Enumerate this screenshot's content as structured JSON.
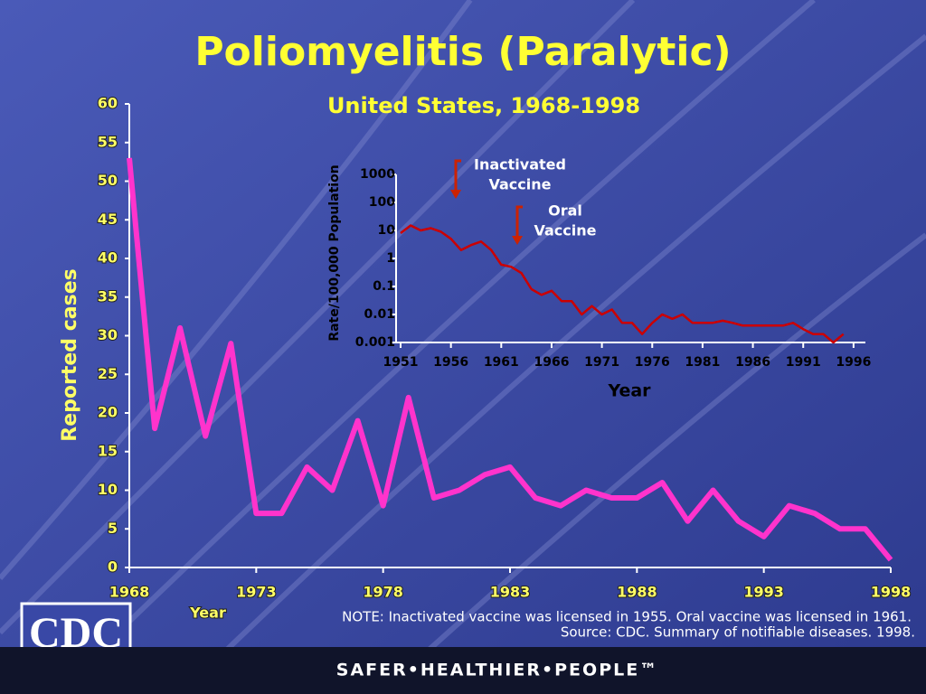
{
  "chart_data": [
    {
      "type": "line",
      "title": "Poliomyelitis (Paralytic)",
      "subtitle": "United States, 1968-1998",
      "y_label": "Reported cases",
      "x_label": "Year",
      "x": [
        1968,
        1969,
        1970,
        1971,
        1972,
        1973,
        1974,
        1975,
        1976,
        1977,
        1978,
        1979,
        1980,
        1981,
        1982,
        1983,
        1984,
        1985,
        1986,
        1987,
        1988,
        1989,
        1990,
        1991,
        1992,
        1993,
        1994,
        1995,
        1996,
        1997,
        1998
      ],
      "series": [
        {
          "name": "Reported cases",
          "color": "#ff33cc",
          "values": [
            53,
            18,
            31,
            17,
            29,
            7,
            7,
            13,
            10,
            19,
            8,
            22,
            9,
            10,
            12,
            13,
            9,
            8,
            10,
            9,
            9,
            11,
            6,
            10,
            6,
            4,
            8,
            7,
            5,
            5,
            1
          ]
        }
      ],
      "xlim": [
        1968,
        1998
      ],
      "xticks": [
        1968,
        1973,
        1978,
        1983,
        1988,
        1993,
        1998
      ],
      "ylim": [
        0,
        60
      ],
      "yticks": [
        0,
        5,
        10,
        15,
        20,
        25,
        30,
        35,
        40,
        45,
        50,
        55,
        60
      ]
    },
    {
      "type": "line",
      "y_label": "Rate/100,000 Population",
      "x_label": "Year",
      "yscale": "log",
      "x": [
        1951,
        1952,
        1953,
        1954,
        1955,
        1956,
        1957,
        1958,
        1959,
        1960,
        1961,
        1962,
        1963,
        1964,
        1965,
        1966,
        1967,
        1968,
        1969,
        1970,
        1971,
        1972,
        1973,
        1974,
        1975,
        1976,
        1977,
        1978,
        1979,
        1980,
        1981,
        1982,
        1983,
        1984,
        1985,
        1986,
        1987,
        1988,
        1989,
        1990,
        1991,
        1992,
        1993,
        1994,
        1995
      ],
      "series": [
        {
          "name": "Rate",
          "color": "#cc0000",
          "values": [
            8,
            15,
            10,
            12,
            9,
            5,
            2,
            3,
            4,
            2,
            0.6,
            0.5,
            0.3,
            0.08,
            0.05,
            0.07,
            0.03,
            0.03,
            0.01,
            0.02,
            0.01,
            0.015,
            0.005,
            0.005,
            0.002,
            0.005,
            0.01,
            0.007,
            0.01,
            0.005,
            0.005,
            0.005,
            0.006,
            0.005,
            0.004,
            0.004,
            0.004,
            0.004,
            0.004,
            0.005,
            0.003,
            0.002,
            0.002,
            0.001,
            0.002
          ]
        }
      ],
      "annotations": [
        {
          "lines": [
            "Inactivated",
            "Vaccine"
          ]
        },
        {
          "lines": [
            "Oral",
            "Vaccine"
          ]
        }
      ],
      "xlim": [
        1951,
        1997
      ],
      "xticks": [
        1951,
        1956,
        1961,
        1966,
        1971,
        1976,
        1981,
        1986,
        1991,
        1996
      ],
      "ylim": [
        0.001,
        1000
      ],
      "yticks": [
        1000,
        100,
        10,
        1,
        0.1,
        0.01,
        0.001
      ]
    }
  ],
  "note": "NOTE: Inactivated vaccine was licensed in 1955. Oral vaccine was licensed in 1961.",
  "source": "Source:  CDC. Summary of notifiable diseases. 1998.",
  "logo": "CDC",
  "tagline": "SAFER•HEALTHIER•PEOPLE™"
}
